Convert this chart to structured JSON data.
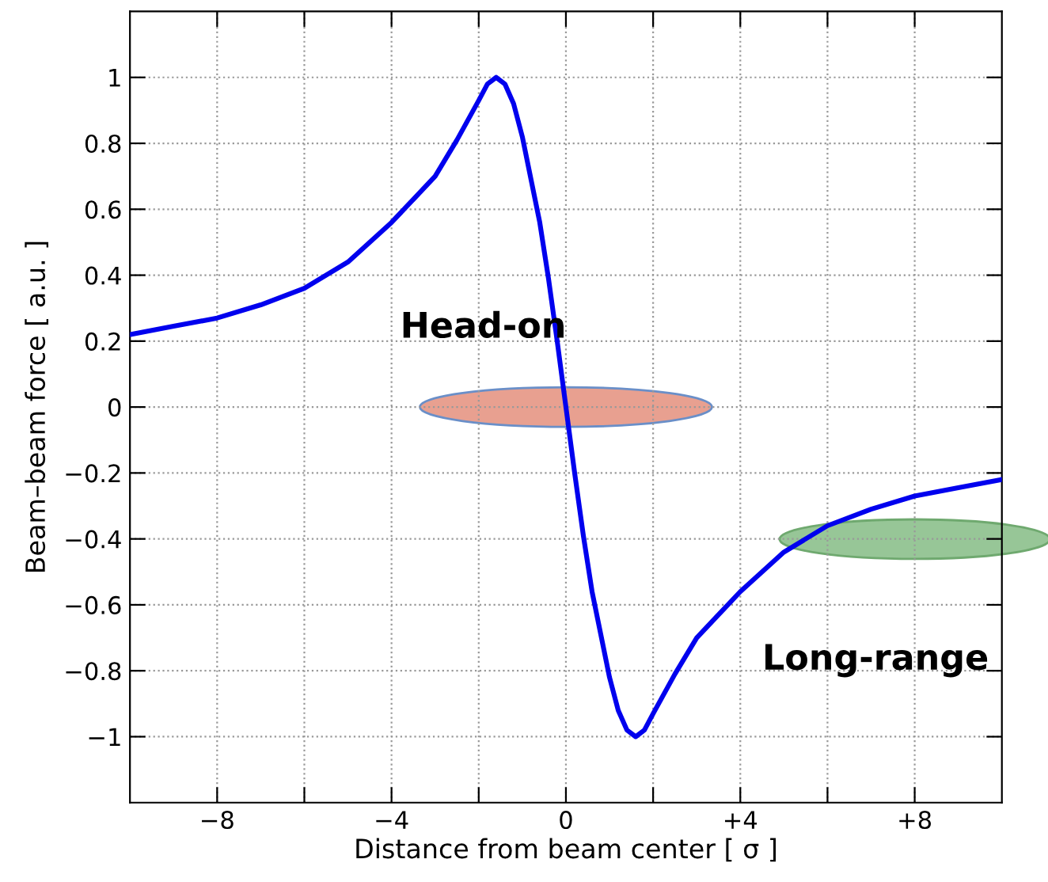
{
  "chart_data": {
    "type": "line",
    "xlabel": "Distance from beam center [ σ ]",
    "ylabel": "Beam–beam force [ a.u. ]",
    "x": [
      -10,
      -9,
      -8,
      -7,
      -6,
      -5,
      -4,
      -3.5,
      -3,
      -2.5,
      -2,
      -1.8,
      -1.6,
      -1.4,
      -1.2,
      -1,
      -0.8,
      -0.6,
      -0.4,
      -0.2,
      0,
      0.2,
      0.4,
      0.6,
      0.8,
      1,
      1.2,
      1.4,
      1.6,
      1.8,
      2,
      2.5,
      3,
      3.5,
      4,
      5,
      6,
      7,
      8,
      9,
      10
    ],
    "series": [
      {
        "color": "#0000ee",
        "values": [
          0.22,
          0.245,
          0.27,
          0.31,
          0.36,
          0.44,
          0.56,
          0.63,
          0.7,
          0.81,
          0.93,
          0.98,
          1.0,
          0.98,
          0.92,
          0.82,
          0.69,
          0.56,
          0.39,
          0.2,
          0,
          -0.2,
          -0.39,
          -0.56,
          -0.69,
          -0.82,
          -0.92,
          -0.98,
          -1.0,
          -0.98,
          -0.93,
          -0.81,
          -0.7,
          -0.63,
          -0.56,
          -0.44,
          -0.36,
          -0.31,
          -0.27,
          -0.245,
          -0.22
        ]
      }
    ],
    "xlim": [
      -10,
      10
    ],
    "xticks": [
      {
        "value": -8,
        "label": "−8"
      },
      {
        "value": -6,
        "label": null
      },
      {
        "value": -4,
        "label": "−4"
      },
      {
        "value": -2,
        "label": null
      },
      0,
      {
        "value": 2,
        "label": null
      },
      {
        "value": 4,
        "label": "+4"
      },
      {
        "value": 6,
        "label": null
      },
      {
        "value": 8,
        "label": "+8"
      }
    ],
    "ylim": [
      -1.2,
      1.2
    ],
    "yticks": [
      {
        "value": -1,
        "label": "−1"
      },
      {
        "value": -0.8,
        "label": "−0.8"
      },
      {
        "value": -0.6,
        "label": "−0.6"
      },
      {
        "value": -0.4,
        "label": "−0.4"
      },
      {
        "value": -0.2,
        "label": "−0.2"
      },
      0,
      0.2,
      0.4,
      0.6,
      0.8,
      1
    ],
    "grid": true,
    "line_style": "solid",
    "annotations": [
      "Head-on",
      "Long-range"
    ]
  }
}
